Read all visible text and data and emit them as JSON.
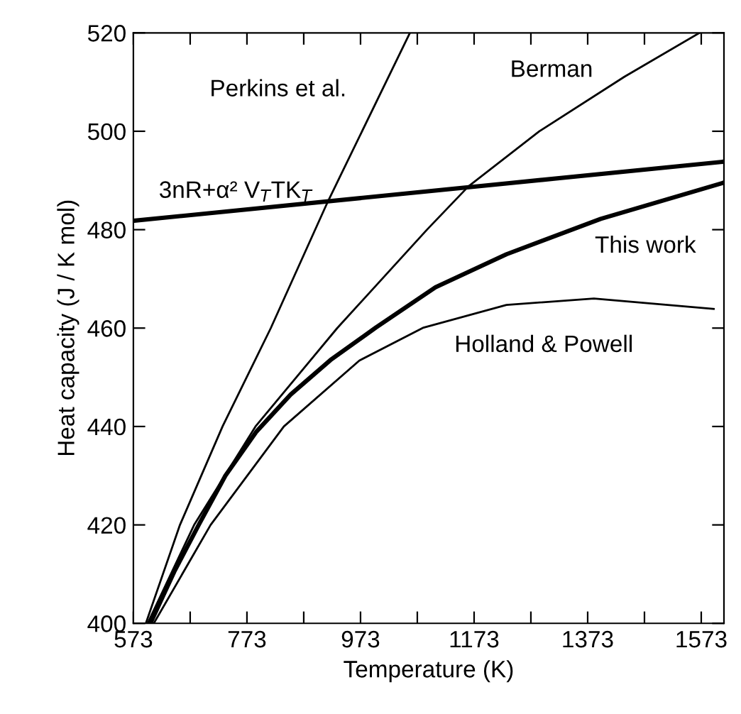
{
  "chart_data": {
    "type": "line",
    "xlabel": "Temperature (K)",
    "ylabel": "Heat capacity (J / K mol)",
    "xlim": [
      573,
      1613
    ],
    "ylim": [
      400,
      520
    ],
    "xticks": [
      573,
      {
        "value": 673,
        "label": null
      },
      773,
      {
        "value": 873,
        "label": null
      },
      973,
      {
        "value": 1073,
        "label": null
      },
      1173,
      {
        "value": 1273,
        "label": null
      },
      1373,
      {
        "value": 1473,
        "label": null
      },
      1573
    ],
    "yticks": [
      400,
      420,
      440,
      460,
      480,
      500,
      520
    ],
    "grid": false,
    "legend": false,
    "marker": "none",
    "line_style": "solid",
    "series": [
      {
        "color": "#000000",
        "x": [
          595,
          655,
          730,
          815,
          915,
          1060
        ],
        "values": [
          400,
          420,
          440,
          460,
          485.6,
          520
        ]
      },
      {
        "color": "#000000",
        "x": [
          598,
          680,
          788,
          932,
          1090,
          1163,
          1288,
          1438,
          1570
        ],
        "values": [
          400,
          420,
          440,
          460,
          480,
          488.8,
          500,
          511.1,
          520
        ]
      },
      {
        "color": "#000000",
        "x": [
          603,
          645,
          688,
          735,
          790,
          850,
          920,
          1000,
          1105,
          1230,
          1396,
          1611
        ],
        "values": [
          400,
          410.5,
          420,
          430,
          439,
          446.5,
          453.5,
          460.1,
          468.3,
          475,
          482.2,
          489.5
        ]
      },
      {
        "color": "#000000",
        "x": [
          609,
          709,
          838,
          971,
          1084,
          1230,
          1384,
          1595
        ],
        "values": [
          400,
          420,
          440,
          453.4,
          460.1,
          464.7,
          466,
          463.9
        ]
      },
      {
        "color": "#000000",
        "x": [
          573,
          1611
        ],
        "values": [
          481.8,
          493.8
        ]
      }
    ],
    "annotations": [
      "Perkins et al.",
      "Berman",
      "3nR+α² V$_{T}$TK$_{T}$",
      "This work",
      "Holland & Powell"
    ]
  }
}
